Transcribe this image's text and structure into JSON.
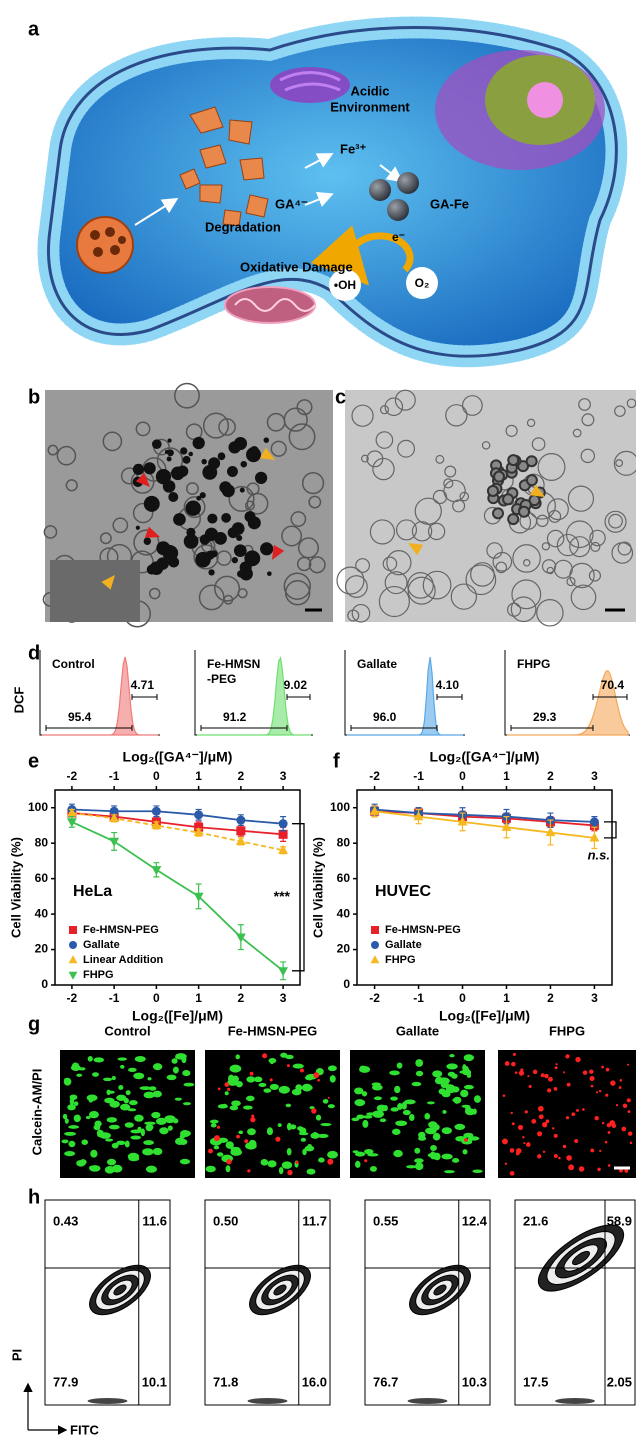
{
  "panel_labels": [
    "a",
    "b",
    "c",
    "d",
    "e",
    "f",
    "g",
    "h"
  ],
  "panel_a": {
    "acidic": "Acidic",
    "environment": "Environment",
    "fe": "Fe³⁺",
    "ga": "GA⁴⁻",
    "ga_fe": "GA-Fe",
    "degradation": "Degradation",
    "electron": "e⁻",
    "damage": "Oxidative Damage",
    "oh": "•OH",
    "o2": "O₂"
  },
  "panel_d": {
    "y_label": "DCF",
    "samples": [
      {
        "name": [
          "Control"
        ],
        "low": "95.4",
        "high": "4.71",
        "color": "#f07a7a"
      },
      {
        "name": [
          "Fe-HMSN",
          "-PEG"
        ],
        "low": "91.2",
        "high": "9.02",
        "color": "#6fe06f"
      },
      {
        "name": [
          "Gallate"
        ],
        "low": "96.0",
        "high": "4.10",
        "color": "#5aa8e8"
      },
      {
        "name": [
          "FHPG"
        ],
        "low": "29.3",
        "high": "70.4",
        "color": "#f5a85a"
      }
    ]
  },
  "chart_data": [
    {
      "type": "line",
      "x_label": "Log₂([Fe]/μM)",
      "top_x_label": "Log₂([GA⁴⁻]/μM)",
      "y_label": "Cell Viability (%)",
      "cell_line": "HeLa",
      "annotation": "***",
      "legend": "lower left",
      "x": [
        -2,
        -1,
        0,
        1,
        2,
        3
      ],
      "xlim": [
        -2.4,
        3.4
      ],
      "xticks": [
        -2,
        -1,
        0,
        1,
        2,
        3
      ],
      "ylim": [
        0,
        110
      ],
      "yticks": [
        0,
        20,
        40,
        60,
        80,
        100
      ],
      "series": [
        {
          "name": "Fe-HMSN-PEG",
          "color": "#e8202a",
          "marker": "square",
          "dashed": false,
          "values": [
            97,
            95,
            92,
            89,
            87,
            85
          ],
          "errors": [
            2,
            3,
            3,
            3,
            3,
            4
          ]
        },
        {
          "name": "Gallate",
          "color": "#2a5aa8",
          "marker": "circle",
          "dashed": false,
          "values": [
            99,
            98,
            98,
            96,
            93,
            91
          ],
          "errors": [
            3,
            3,
            3,
            3,
            3,
            4
          ]
        },
        {
          "name": "Linear Addition",
          "color": "#f5b820",
          "marker": "triangle-up",
          "dashed": true,
          "values": [
            97,
            94,
            90,
            86,
            81,
            76
          ],
          "errors": [
            2,
            2,
            2,
            2,
            2,
            2
          ]
        },
        {
          "name": "FHPG",
          "color": "#3cc050",
          "marker": "triangle-down",
          "dashed": false,
          "values": [
            92,
            81,
            65,
            50,
            27,
            8
          ],
          "errors": [
            3,
            5,
            4,
            7,
            7,
            5
          ]
        }
      ]
    },
    {
      "type": "line",
      "x_label": "Log₂([Fe]/μM)",
      "top_x_label": "Log₂([GA⁴⁻]/μM)",
      "y_label": "Cell Viability (%)",
      "cell_line": "HUVEC",
      "annotation": "n.s.",
      "legend": "lower left",
      "x": [
        -2,
        -1,
        0,
        1,
        2,
        3
      ],
      "xlim": [
        -2.4,
        3.4
      ],
      "xticks": [
        -2,
        -1,
        0,
        1,
        2,
        3
      ],
      "ylim": [
        0,
        110
      ],
      "yticks": [
        0,
        20,
        40,
        60,
        80,
        100
      ],
      "series": [
        {
          "name": "Fe-HMSN-PEG",
          "color": "#e8202a",
          "marker": "square",
          "dashed": false,
          "values": [
            98,
            97,
            95,
            94,
            92,
            90
          ],
          "errors": [
            3,
            3,
            3,
            3,
            3,
            3
          ]
        },
        {
          "name": "Gallate",
          "color": "#2a5aa8",
          "marker": "circle",
          "dashed": false,
          "values": [
            99,
            97,
            96,
            95,
            93,
            92
          ],
          "errors": [
            3,
            3,
            4,
            4,
            4,
            3
          ]
        },
        {
          "name": "FHPG",
          "color": "#f5b820",
          "marker": "triangle-up",
          "dashed": false,
          "values": [
            98,
            95,
            92,
            89,
            86,
            83
          ],
          "errors": [
            3,
            4,
            5,
            6,
            7,
            6
          ]
        }
      ]
    }
  ],
  "panel_g": {
    "y_label": "Calcein-AM/PI",
    "samples": [
      "Control",
      "Fe-HMSN-PEG",
      "Gallate",
      "FHPG"
    ]
  },
  "panel_h": {
    "y_label": "PI",
    "x_label": "FITC",
    "plots": [
      [
        "0.43",
        "11.6",
        "77.9",
        "10.1"
      ],
      [
        "0.50",
        "11.7",
        "71.8",
        "16.0"
      ],
      [
        "0.55",
        "12.4",
        "76.7",
        "10.3"
      ],
      [
        "21.6",
        "58.9",
        "17.5",
        "2.05"
      ]
    ]
  }
}
